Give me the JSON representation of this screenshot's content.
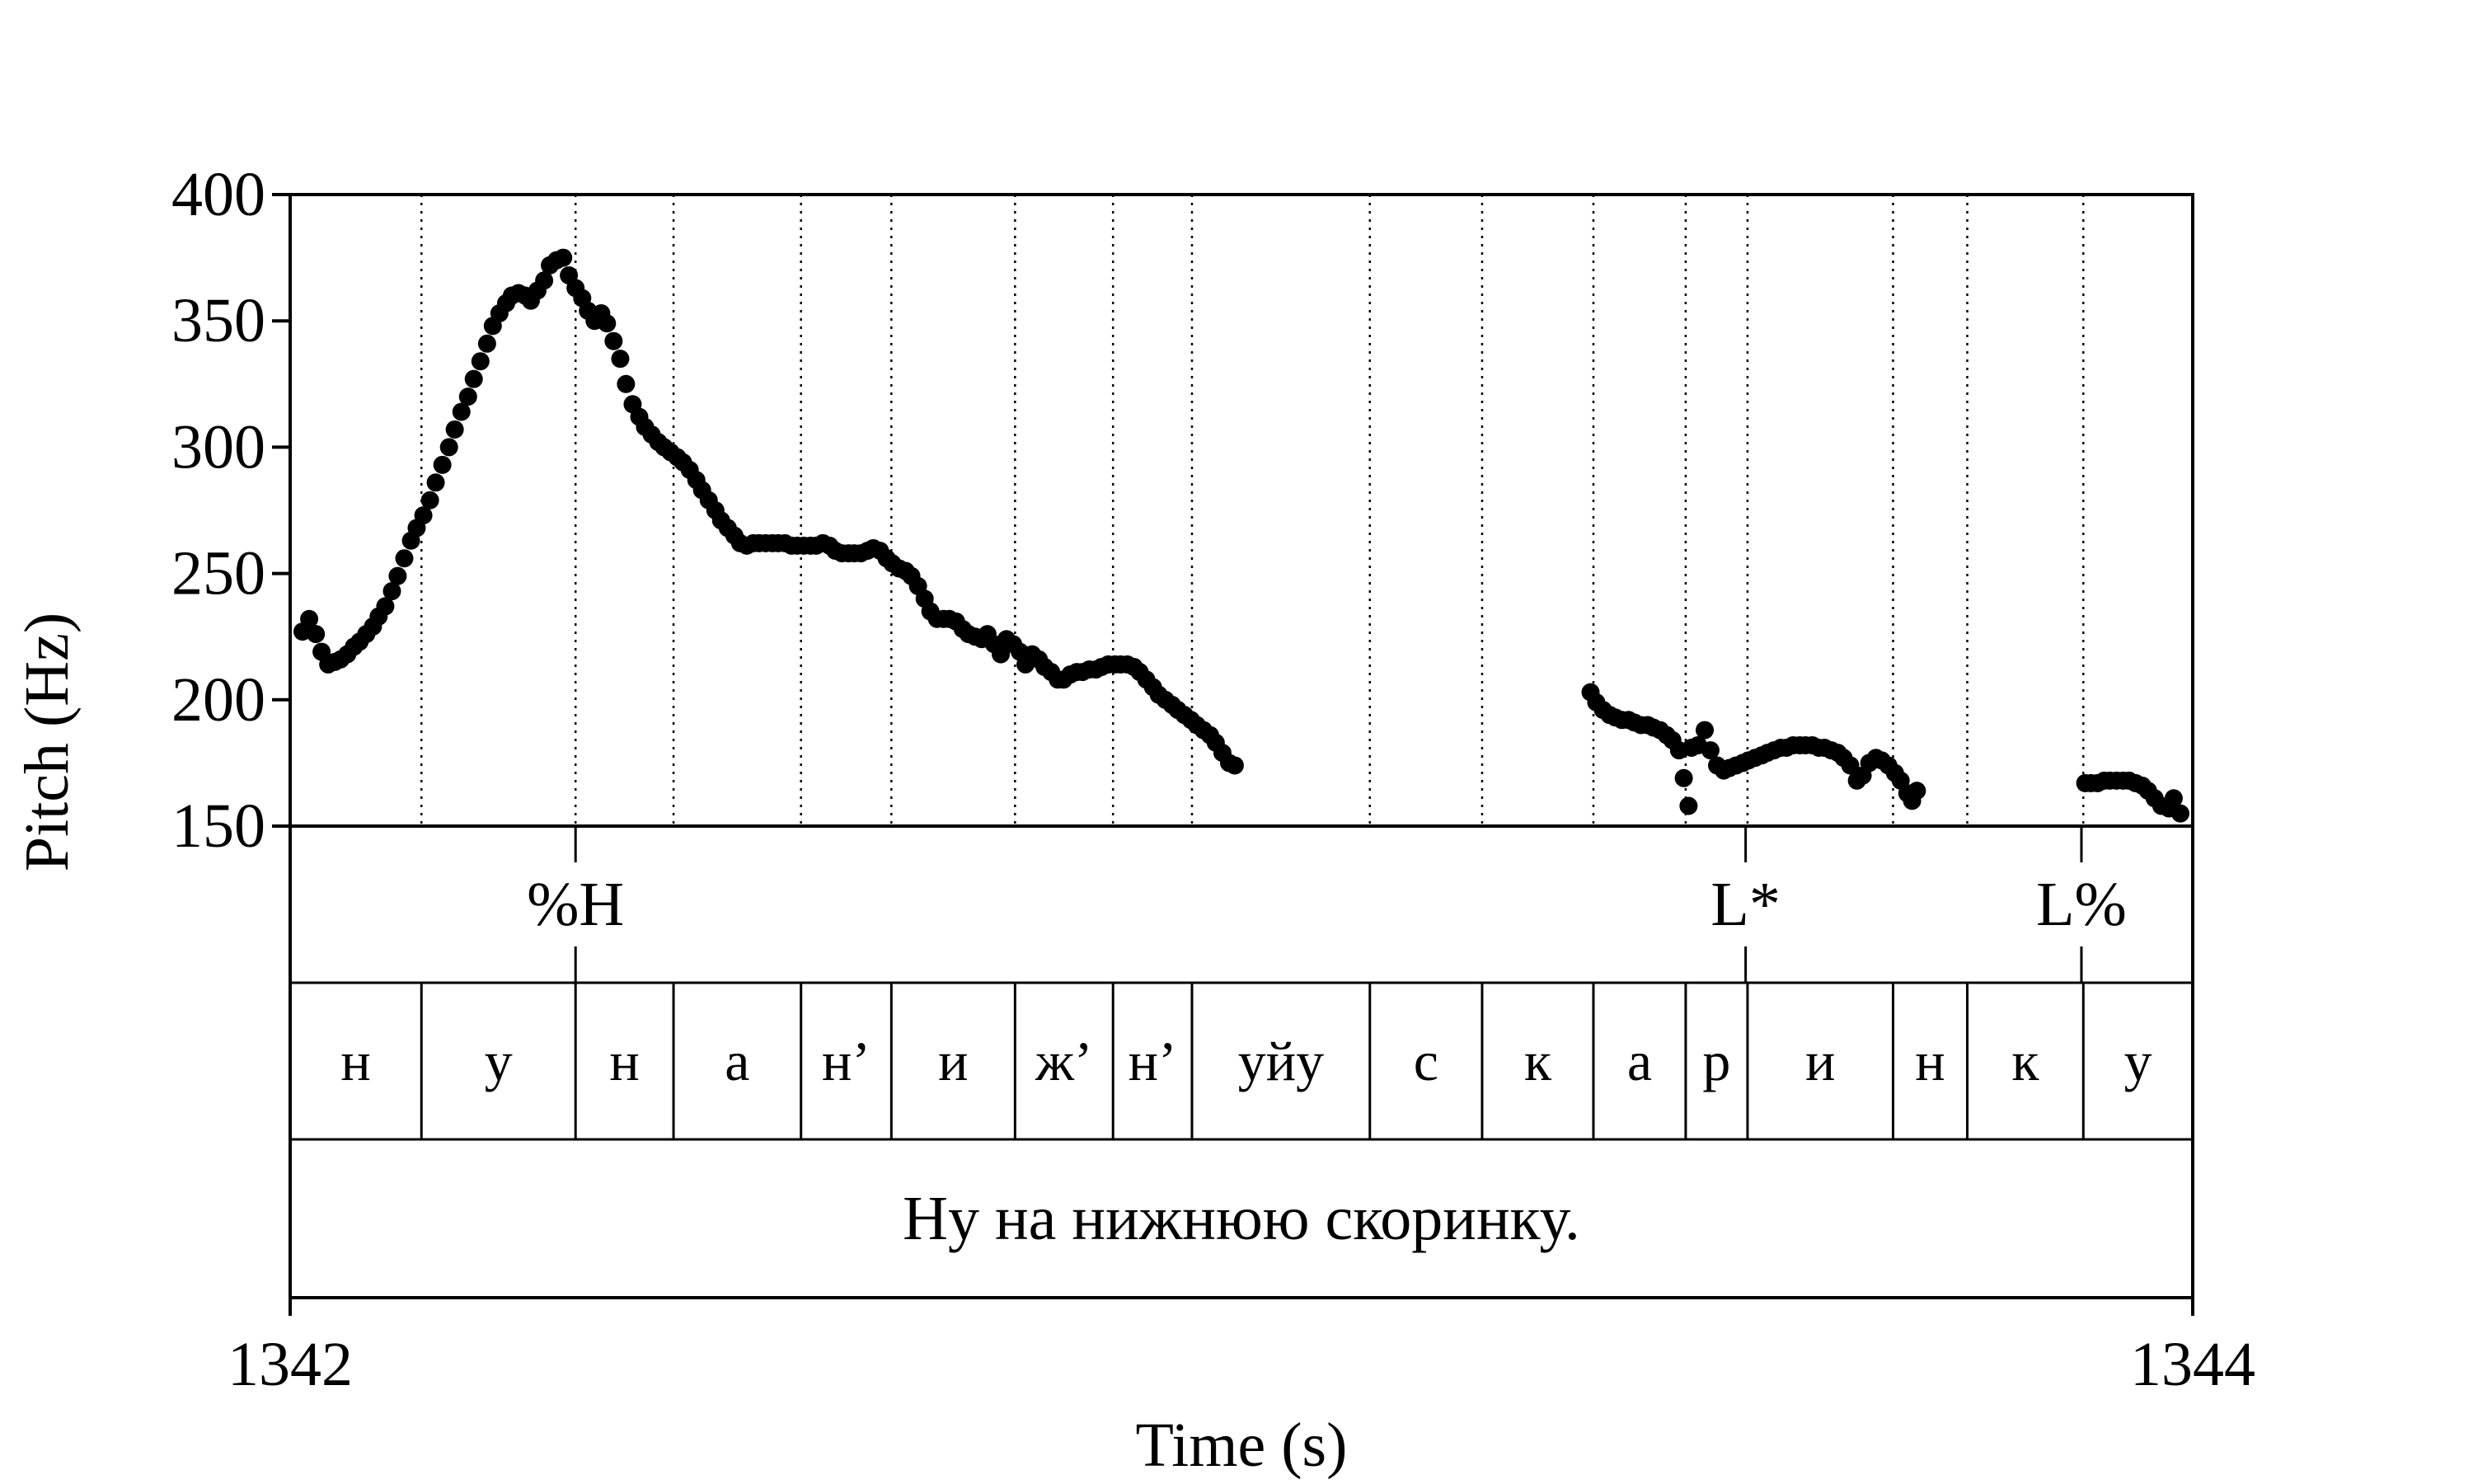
{
  "chart_data": {
    "type": "scatter",
    "title": "",
    "xlabel": "Time (s)",
    "ylabel": "Pitch (Hz)",
    "xlim": [
      1342,
      1344
    ],
    "ylim": [
      150,
      400
    ],
    "x_ticks": [
      "1342",
      "1344"
    ],
    "y_ticks": [
      "150",
      "200",
      "250",
      "300",
      "350",
      "400"
    ],
    "grid": "dotted vertical lines at segment boundaries",
    "colors": {
      "points": "#000000",
      "axes": "#000000"
    },
    "series": [
      {
        "points": [
          [
            1342.013,
            227
          ],
          [
            1342.02,
            232
          ],
          [
            1342.027,
            226
          ],
          [
            1342.033,
            219
          ],
          [
            1342.04,
            214
          ],
          [
            1342.047,
            215
          ],
          [
            1342.053,
            216
          ],
          [
            1342.06,
            218
          ],
          [
            1342.067,
            221
          ],
          [
            1342.073,
            223
          ],
          [
            1342.08,
            226
          ],
          [
            1342.087,
            229
          ],
          [
            1342.093,
            233
          ],
          [
            1342.1,
            237
          ],
          [
            1342.107,
            243
          ],
          [
            1342.113,
            249
          ],
          [
            1342.12,
            256
          ],
          [
            1342.127,
            263
          ],
          [
            1342.133,
            268
          ],
          [
            1342.14,
            273
          ],
          [
            1342.147,
            279
          ],
          [
            1342.153,
            286
          ],
          [
            1342.16,
            293
          ],
          [
            1342.167,
            300
          ],
          [
            1342.173,
            307
          ],
          [
            1342.18,
            314
          ],
          [
            1342.187,
            320
          ],
          [
            1342.193,
            327
          ],
          [
            1342.2,
            334
          ],
          [
            1342.207,
            341
          ],
          [
            1342.213,
            348
          ],
          [
            1342.22,
            353
          ],
          [
            1342.227,
            357
          ],
          [
            1342.233,
            360
          ],
          [
            1342.24,
            361
          ],
          [
            1342.247,
            360
          ],
          [
            1342.253,
            358
          ],
          [
            1342.26,
            362
          ],
          [
            1342.267,
            366
          ],
          [
            1342.273,
            372
          ],
          [
            1342.28,
            374
          ],
          [
            1342.287,
            375
          ],
          [
            1342.293,
            368
          ],
          [
            1342.3,
            363
          ],
          [
            1342.307,
            359
          ],
          [
            1342.313,
            354
          ],
          [
            1342.32,
            350
          ],
          [
            1342.327,
            353
          ],
          [
            1342.333,
            349
          ],
          [
            1342.34,
            342
          ],
          [
            1342.347,
            335
          ],
          [
            1342.353,
            325
          ],
          [
            1342.36,
            317
          ],
          [
            1342.367,
            312
          ],
          [
            1342.373,
            308
          ],
          [
            1342.38,
            305
          ],
          [
            1342.387,
            302
          ],
          [
            1342.393,
            300
          ],
          [
            1342.4,
            298
          ],
          [
            1342.407,
            296
          ],
          [
            1342.413,
            294
          ],
          [
            1342.42,
            291
          ],
          [
            1342.427,
            287
          ],
          [
            1342.433,
            283
          ],
          [
            1342.44,
            279
          ],
          [
            1342.447,
            275
          ],
          [
            1342.453,
            271
          ],
          [
            1342.46,
            268
          ],
          [
            1342.467,
            265
          ],
          [
            1342.473,
            262
          ],
          [
            1342.48,
            261
          ],
          [
            1342.487,
            262
          ],
          [
            1342.493,
            262
          ],
          [
            1342.5,
            262
          ],
          [
            1342.507,
            262
          ],
          [
            1342.513,
            262
          ],
          [
            1342.52,
            262
          ],
          [
            1342.527,
            261
          ],
          [
            1342.533,
            261
          ],
          [
            1342.54,
            261
          ],
          [
            1342.547,
            261
          ],
          [
            1342.553,
            261
          ],
          [
            1342.56,
            262
          ],
          [
            1342.567,
            261
          ],
          [
            1342.573,
            259
          ],
          [
            1342.58,
            258
          ],
          [
            1342.587,
            258
          ],
          [
            1342.593,
            258
          ],
          [
            1342.6,
            258
          ],
          [
            1342.607,
            259
          ],
          [
            1342.613,
            260
          ],
          [
            1342.62,
            259
          ],
          [
            1342.627,
            256
          ],
          [
            1342.633,
            254
          ],
          [
            1342.64,
            252
          ],
          [
            1342.647,
            251
          ],
          [
            1342.653,
            249
          ],
          [
            1342.66,
            245
          ],
          [
            1342.667,
            240
          ],
          [
            1342.673,
            235
          ],
          [
            1342.68,
            232
          ],
          [
            1342.687,
            232
          ],
          [
            1342.693,
            232
          ],
          [
            1342.7,
            231
          ],
          [
            1342.707,
            228
          ],
          [
            1342.713,
            226
          ],
          [
            1342.72,
            225
          ],
          [
            1342.727,
            224
          ],
          [
            1342.733,
            226
          ],
          [
            1342.74,
            222
          ],
          [
            1342.747,
            218
          ],
          [
            1342.753,
            224
          ],
          [
            1342.76,
            222
          ],
          [
            1342.767,
            219
          ],
          [
            1342.773,
            214
          ],
          [
            1342.78,
            218
          ],
          [
            1342.787,
            216
          ],
          [
            1342.793,
            213
          ],
          [
            1342.8,
            211
          ],
          [
            1342.807,
            208
          ],
          [
            1342.813,
            208
          ],
          [
            1342.82,
            210
          ],
          [
            1342.827,
            211
          ],
          [
            1342.833,
            211
          ],
          [
            1342.84,
            212
          ],
          [
            1342.847,
            212
          ],
          [
            1342.853,
            213
          ],
          [
            1342.86,
            214
          ],
          [
            1342.867,
            214
          ],
          [
            1342.873,
            214
          ],
          [
            1342.88,
            214
          ],
          [
            1342.887,
            213
          ],
          [
            1342.893,
            211
          ],
          [
            1342.9,
            208
          ],
          [
            1342.907,
            205
          ],
          [
            1342.913,
            202
          ],
          [
            1342.92,
            200
          ],
          [
            1342.927,
            198
          ],
          [
            1342.933,
            196
          ],
          [
            1342.94,
            194
          ],
          [
            1342.947,
            192
          ],
          [
            1342.953,
            190
          ],
          [
            1342.96,
            188
          ],
          [
            1342.967,
            186
          ],
          [
            1342.973,
            183
          ],
          [
            1342.98,
            179
          ],
          [
            1342.987,
            175
          ],
          [
            1342.993,
            174
          ],
          [
            1343.367,
            203
          ],
          [
            1343.373,
            199
          ],
          [
            1343.38,
            196
          ],
          [
            1343.387,
            194
          ],
          [
            1343.393,
            193
          ],
          [
            1343.4,
            192
          ],
          [
            1343.407,
            192
          ],
          [
            1343.413,
            191
          ],
          [
            1343.42,
            190
          ],
          [
            1343.427,
            190
          ],
          [
            1343.433,
            189
          ],
          [
            1343.44,
            188
          ],
          [
            1343.447,
            186
          ],
          [
            1343.453,
            184
          ],
          [
            1343.46,
            180
          ],
          [
            1343.465,
            169
          ],
          [
            1343.47,
            158
          ],
          [
            1343.473,
            181
          ],
          [
            1343.48,
            182
          ],
          [
            1343.487,
            188
          ],
          [
            1343.493,
            180
          ],
          [
            1343.5,
            174
          ],
          [
            1343.507,
            172
          ],
          [
            1343.513,
            173
          ],
          [
            1343.52,
            174
          ],
          [
            1343.527,
            175
          ],
          [
            1343.533,
            176
          ],
          [
            1343.54,
            177
          ],
          [
            1343.547,
            178
          ],
          [
            1343.553,
            179
          ],
          [
            1343.56,
            180
          ],
          [
            1343.567,
            181
          ],
          [
            1343.573,
            181
          ],
          [
            1343.58,
            182
          ],
          [
            1343.587,
            182
          ],
          [
            1343.593,
            182
          ],
          [
            1343.6,
            182
          ],
          [
            1343.607,
            181
          ],
          [
            1343.613,
            181
          ],
          [
            1343.62,
            180
          ],
          [
            1343.627,
            179
          ],
          [
            1343.633,
            177
          ],
          [
            1343.64,
            174
          ],
          [
            1343.647,
            168
          ],
          [
            1343.653,
            170
          ],
          [
            1343.66,
            175
          ],
          [
            1343.667,
            177
          ],
          [
            1343.673,
            176
          ],
          [
            1343.68,
            174
          ],
          [
            1343.687,
            171
          ],
          [
            1343.693,
            168
          ],
          [
            1343.7,
            163
          ],
          [
            1343.705,
            160
          ],
          [
            1343.71,
            164
          ],
          [
            1343.887,
            167
          ],
          [
            1343.893,
            167
          ],
          [
            1343.9,
            167
          ],
          [
            1343.907,
            168
          ],
          [
            1343.913,
            168
          ],
          [
            1343.92,
            168
          ],
          [
            1343.927,
            168
          ],
          [
            1343.933,
            168
          ],
          [
            1343.94,
            167
          ],
          [
            1343.947,
            166
          ],
          [
            1343.953,
            164
          ],
          [
            1343.96,
            161
          ],
          [
            1343.967,
            158
          ],
          [
            1343.975,
            157
          ],
          [
            1343.98,
            161
          ],
          [
            1343.987,
            155
          ]
        ]
      }
    ],
    "tone_tier": [
      {
        "label": "%H",
        "time": 1342.3
      },
      {
        "label": "L*",
        "time": 1343.53
      },
      {
        "label": "L%",
        "time": 1343.883
      }
    ],
    "segment_tier": [
      {
        "label": "н",
        "start": 1342.0,
        "end": 1342.138
      },
      {
        "label": "у",
        "start": 1342.138,
        "end": 1342.3
      },
      {
        "label": "н",
        "start": 1342.3,
        "end": 1342.403
      },
      {
        "label": "а",
        "start": 1342.403,
        "end": 1342.537
      },
      {
        "label": "н’",
        "start": 1342.537,
        "end": 1342.632
      },
      {
        "label": "и",
        "start": 1342.632,
        "end": 1342.762
      },
      {
        "label": "ж’",
        "start": 1342.762,
        "end": 1342.865
      },
      {
        "label": "н’",
        "start": 1342.865,
        "end": 1342.948
      },
      {
        "label": "уйу",
        "start": 1342.948,
        "end": 1343.135
      },
      {
        "label": "с",
        "start": 1343.135,
        "end": 1343.253
      },
      {
        "label": "к",
        "start": 1343.253,
        "end": 1343.37
      },
      {
        "label": "а",
        "start": 1343.37,
        "end": 1343.467
      },
      {
        "label": "р",
        "start": 1343.467,
        "end": 1343.532
      },
      {
        "label": "и",
        "start": 1343.532,
        "end": 1343.685
      },
      {
        "label": "н",
        "start": 1343.685,
        "end": 1343.763
      },
      {
        "label": "к",
        "start": 1343.763,
        "end": 1343.885
      },
      {
        "label": "у",
        "start": 1343.885,
        "end": 1344.0
      }
    ],
    "word_tier": {
      "label": "Ну на нижнюю скоринку.",
      "start": 1342.0,
      "end": 1344.0
    }
  }
}
